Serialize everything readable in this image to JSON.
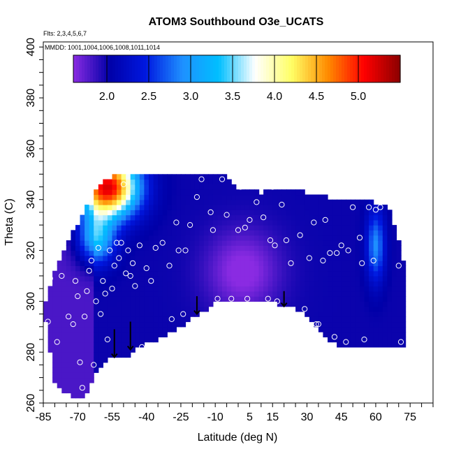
{
  "chart_data": {
    "type": "heatmap",
    "title": "ATOM3 Southbound O3e_UCATS",
    "annotations": [
      "Flts: 2,3,4,5,6,7",
      "MMDD: 1001,1004,1006,1008,1011,1014"
    ],
    "xlabel": "Latitude (deg N)",
    "ylabel": "Theta (C)",
    "xlim": [
      -85,
      85
    ],
    "ylim": [
      260,
      402
    ],
    "x_ticks": [
      -85,
      -70,
      -55,
      -40,
      -25,
      -10,
      5,
      15,
      30,
      45,
      60,
      75
    ],
    "y_ticks": [
      260,
      280,
      300,
      320,
      340,
      360,
      380,
      400
    ],
    "colorbar": {
      "range": [
        1.6,
        5.5
      ],
      "ticks": [
        2.0,
        2.5,
        3.0,
        3.5,
        4.0,
        4.5,
        5.0
      ],
      "tick_labels": [
        "2.0",
        "2.5",
        "3.0",
        "3.5",
        "4.0",
        "4.5",
        "5.0"
      ],
      "colors": [
        "#8a2be2",
        "#0000a8",
        "#0018e0",
        "#1e90ff",
        "#00bfff",
        "#ffffff",
        "#ffff66",
        "#ff8c00",
        "#ff0000",
        "#8b0000"
      ]
    },
    "sample_points": [
      {
        "x": -83,
        "y": 292
      },
      {
        "x": -82,
        "y": 309
      },
      {
        "x": -79,
        "y": 284
      },
      {
        "x": -77,
        "y": 310
      },
      {
        "x": -74,
        "y": 294
      },
      {
        "x": -72,
        "y": 291
      },
      {
        "x": -71,
        "y": 308
      },
      {
        "x": -70,
        "y": 302
      },
      {
        "x": -69,
        "y": 276
      },
      {
        "x": -68,
        "y": 266
      },
      {
        "x": -67,
        "y": 294
      },
      {
        "x": -66,
        "y": 304
      },
      {
        "x": -65,
        "y": 312
      },
      {
        "x": -64,
        "y": 316
      },
      {
        "x": -63,
        "y": 275
      },
      {
        "x": -62,
        "y": 300
      },
      {
        "x": -61,
        "y": 321
      },
      {
        "x": -60,
        "y": 295
      },
      {
        "x": -59,
        "y": 308
      },
      {
        "x": -58,
        "y": 303
      },
      {
        "x": -57,
        "y": 285
      },
      {
        "x": -56,
        "y": 320
      },
      {
        "x": -55,
        "y": 305
      },
      {
        "x": -54,
        "y": 314
      },
      {
        "x": -53,
        "y": 323
      },
      {
        "x": -52,
        "y": 317
      },
      {
        "x": -51,
        "y": 323
      },
      {
        "x": -50,
        "y": 346
      },
      {
        "x": -49,
        "y": 311
      },
      {
        "x": -48,
        "y": 320
      },
      {
        "x": -47,
        "y": 310
      },
      {
        "x": -46,
        "y": 315
      },
      {
        "x": -45,
        "y": 306
      },
      {
        "x": -43,
        "y": 322
      },
      {
        "x": -42,
        "y": 282
      },
      {
        "x": -40,
        "y": 313
      },
      {
        "x": -38,
        "y": 308
      },
      {
        "x": -36,
        "y": 321
      },
      {
        "x": -33,
        "y": 323
      },
      {
        "x": -30,
        "y": 314
      },
      {
        "x": -29,
        "y": 293
      },
      {
        "x": -27,
        "y": 331
      },
      {
        "x": -26,
        "y": 320
      },
      {
        "x": -24,
        "y": 295
      },
      {
        "x": -23,
        "y": 320
      },
      {
        "x": -21,
        "y": 330
      },
      {
        "x": -18,
        "y": 341
      },
      {
        "x": -16,
        "y": 348
      },
      {
        "x": -12,
        "y": 335
      },
      {
        "x": -11,
        "y": 328
      },
      {
        "x": -9,
        "y": 301
      },
      {
        "x": -7,
        "y": 348
      },
      {
        "x": -5,
        "y": 334
      },
      {
        "x": -3,
        "y": 301
      },
      {
        "x": 0,
        "y": 328
      },
      {
        "x": 1,
        "y": 345
      },
      {
        "x": 3,
        "y": 329
      },
      {
        "x": 4,
        "y": 301
      },
      {
        "x": 5,
        "y": 332
      },
      {
        "x": 8,
        "y": 339
      },
      {
        "x": 11,
        "y": 333
      },
      {
        "x": 13,
        "y": 301
      },
      {
        "x": 14,
        "y": 324
      },
      {
        "x": 15,
        "y": 345
      },
      {
        "x": 16,
        "y": 322
      },
      {
        "x": 17,
        "y": 300
      },
      {
        "x": 19,
        "y": 338
      },
      {
        "x": 21,
        "y": 324
      },
      {
        "x": 23,
        "y": 315
      },
      {
        "x": 25,
        "y": 346
      },
      {
        "x": 27,
        "y": 326
      },
      {
        "x": 29,
        "y": 297
      },
      {
        "x": 31,
        "y": 317
      },
      {
        "x": 33,
        "y": 331
      },
      {
        "x": 34,
        "y": 291
      },
      {
        "x": 35,
        "y": 291
      },
      {
        "x": 37,
        "y": 316
      },
      {
        "x": 38,
        "y": 332
      },
      {
        "x": 40,
        "y": 319
      },
      {
        "x": 42,
        "y": 286
      },
      {
        "x": 43,
        "y": 319
      },
      {
        "x": 45,
        "y": 322
      },
      {
        "x": 47,
        "y": 284
      },
      {
        "x": 48,
        "y": 320
      },
      {
        "x": 50,
        "y": 337
      },
      {
        "x": 53,
        "y": 325
      },
      {
        "x": 54,
        "y": 315
      },
      {
        "x": 55,
        "y": 285
      },
      {
        "x": 57,
        "y": 337
      },
      {
        "x": 59,
        "y": 316
      },
      {
        "x": 60,
        "y": 336
      },
      {
        "x": 62,
        "y": 337
      },
      {
        "x": 70,
        "y": 314
      },
      {
        "x": 71,
        "y": 284
      }
    ],
    "arrows": [
      {
        "x": -54,
        "y_start": 289,
        "y_end": 278
      },
      {
        "x": -47,
        "y_start": 292,
        "y_end": 281
      },
      {
        "x": -18,
        "y_start": 302,
        "y_end": 295
      },
      {
        "x": 20,
        "y_start": 304,
        "y_end": 298
      }
    ]
  }
}
